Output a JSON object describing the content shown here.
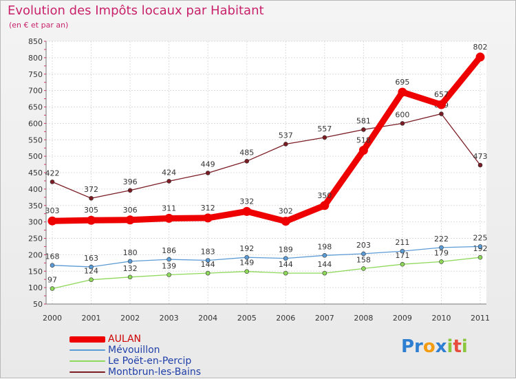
{
  "header": {
    "title": "Evolution des Impôts locaux par Habitant",
    "subtitle": "(en € et par an)"
  },
  "brand": {
    "part1": "Pr",
    "part2": "o",
    "part3": "x",
    "part4": "i",
    "part5": "t",
    "part6": "i"
  },
  "chart_data": {
    "type": "line",
    "title": "Evolution des Impôts locaux par Habitant",
    "subtitle": "(en € et par an)",
    "xlabel": "",
    "ylabel": "",
    "ylim": [
      50,
      850
    ],
    "yticks": [
      50,
      100,
      150,
      200,
      250,
      300,
      350,
      400,
      450,
      500,
      550,
      600,
      650,
      700,
      750,
      800,
      850
    ],
    "categories": [
      "2000",
      "2001",
      "2002",
      "2003",
      "2004",
      "2005",
      "2006",
      "2007",
      "2008",
      "2009",
      "2010",
      "2011"
    ],
    "grid": true,
    "legend_position": "bottom-left",
    "series": [
      {
        "name": "Montbrun-les-Bains",
        "color": "#7b1c24",
        "values": [
          422,
          372,
          396,
          424,
          449,
          485,
          537,
          557,
          581,
          600,
          629,
          473
        ]
      },
      {
        "name": "Le Poët-en-Percip",
        "color": "#8ed85a",
        "values": [
          97,
          124,
          132,
          139,
          144,
          149,
          144,
          144,
          158,
          171,
          179,
          192
        ]
      },
      {
        "name": "Mévouillon",
        "color": "#5b9bd5",
        "values": [
          168,
          163,
          180,
          186,
          183,
          192,
          189,
          198,
          203,
          211,
          222,
          225
        ]
      },
      {
        "name": "AULAN",
        "color": "#ee0000",
        "values": [
          303,
          305,
          306,
          311,
          312,
          332,
          302,
          350,
          518,
          695,
          657,
          802
        ]
      }
    ]
  }
}
